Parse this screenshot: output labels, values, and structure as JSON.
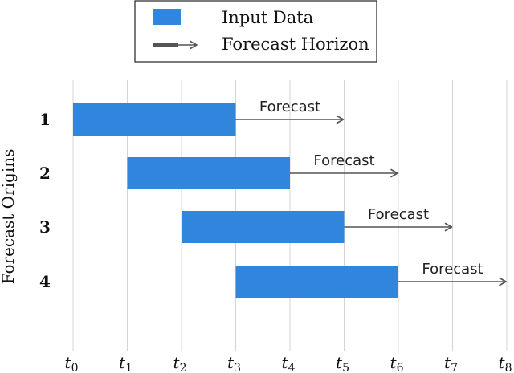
{
  "legend": {
    "input_label": "Input Data",
    "horizon_label": "Forecast Horizon"
  },
  "ylabel": "Forecast Origins",
  "colors": {
    "input": "#2f86dc",
    "arrow": "#555555",
    "grid": "#d4d4d4",
    "text": "#111111"
  },
  "chart_data": {
    "type": "gantt",
    "xlabel": "",
    "ylabel": "Forecast Origins",
    "x_ticks": [
      {
        "base": "t",
        "sub": "0"
      },
      {
        "base": "t",
        "sub": "1"
      },
      {
        "base": "t",
        "sub": "2"
      },
      {
        "base": "t",
        "sub": "3"
      },
      {
        "base": "t",
        "sub": "4"
      },
      {
        "base": "t",
        "sub": "5"
      },
      {
        "base": "t",
        "sub": "6"
      },
      {
        "base": "t",
        "sub": "7"
      },
      {
        "base": "t",
        "sub": "8"
      }
    ],
    "xlim": [
      0,
      8
    ],
    "grid": true,
    "legend_position": "top-center",
    "rows": [
      {
        "label": "1",
        "input_start": 0,
        "input_end": 3,
        "forecast_end": 5,
        "forecast_label": "Forecast"
      },
      {
        "label": "2",
        "input_start": 1,
        "input_end": 4,
        "forecast_end": 6,
        "forecast_label": "Forecast"
      },
      {
        "label": "3",
        "input_start": 2,
        "input_end": 5,
        "forecast_end": 7,
        "forecast_label": "Forecast"
      },
      {
        "label": "4",
        "input_start": 3,
        "input_end": 6,
        "forecast_end": 8,
        "forecast_label": "Forecast"
      }
    ]
  }
}
